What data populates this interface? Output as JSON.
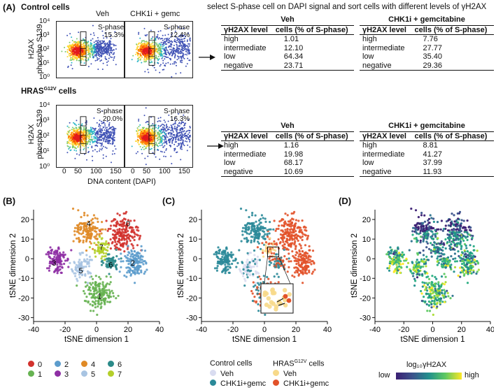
{
  "panel_a": {
    "label": "(A)",
    "title": "select S-phase cell on DAPI signal and sort cells with different levels of γH2AX",
    "flow_ylabel_1": "H2AX",
    "flow_ylabel_2": "phospho S139",
    "flow_xlabel": "DNA content (DAPI)",
    "yticks": [
      "10⁴",
      "10³",
      "10²",
      "10¹",
      "10⁰"
    ],
    "xticks": [
      "0",
      "50",
      "100",
      "150"
    ],
    "rows": [
      {
        "group": "Control cells",
        "group_sup": "",
        "conditions": [
          "Veh",
          "CHK1i + gemc"
        ],
        "sphase_label": "S-phase",
        "sphase_pct": [
          "15.3%",
          "12.4%"
        ],
        "tables": [
          {
            "header": "Veh",
            "col1": "γH2AX level",
            "col2": "cells (% of S-phase)",
            "rows": [
              [
                "high",
                "1.01"
              ],
              [
                "intermediate",
                "12.10"
              ],
              [
                "low",
                "64.34"
              ],
              [
                "negative",
                "23.71"
              ]
            ]
          },
          {
            "header": "CHK1i + gemcitabine",
            "col1": "γH2AX level",
            "col2": "cells (% of S-phase)",
            "rows": [
              [
                "high",
                "7.76"
              ],
              [
                "intermediate",
                "27.77"
              ],
              [
                "low",
                "35.40"
              ],
              [
                "negative",
                "29.36"
              ]
            ]
          }
        ]
      },
      {
        "group": "HRAS",
        "group_sup": "G12V",
        "group_tail": " cells",
        "conditions": [
          "",
          ""
        ],
        "sphase_label": "S-phase",
        "sphase_pct": [
          "20.0%",
          "16.3%"
        ],
        "tables": [
          {
            "header": "Veh",
            "col1": "γH2AX level",
            "col2": "cells (% of S-phase)",
            "rows": [
              [
                "high",
                "1.16"
              ],
              [
                "intermediate",
                "19.98"
              ],
              [
                "low",
                "68.17"
              ],
              [
                "negative",
                "10.69"
              ]
            ]
          },
          {
            "header": "CHK1i + gemcitabine",
            "col1": "γH2AX level",
            "col2": "cells (% of S-phase)",
            "rows": [
              [
                "high",
                "8.81"
              ],
              [
                "intermediate",
                "41.27"
              ],
              [
                "low",
                "37.99"
              ],
              [
                "negative",
                "11.93"
              ]
            ]
          }
        ]
      }
    ]
  },
  "tsne": {
    "xlabel": "tSNE dimension 1",
    "ylabel": "tSNE dimension 2",
    "xticks": [
      "-40",
      "-20",
      "0",
      "20",
      "40"
    ],
    "yticks": [
      "20",
      "10",
      "0",
      "-10",
      "-20",
      "-30"
    ]
  },
  "panel_b": {
    "label": "(B)",
    "cluster_labels": [
      "0",
      "1",
      "2",
      "3",
      "4",
      "5",
      "6",
      "7"
    ],
    "legend": [
      {
        "label": "0",
        "color": "#d2322d"
      },
      {
        "label": "1",
        "color": "#67b352"
      },
      {
        "label": "2",
        "color": "#5c9ccc"
      },
      {
        "label": "3",
        "color": "#8e2fa4"
      },
      {
        "label": "4",
        "color": "#e08a26"
      },
      {
        "label": "5",
        "color": "#a8c4e2"
      },
      {
        "label": "6",
        "color": "#2b8a89"
      },
      {
        "label": "7",
        "color": "#b4cf2a"
      }
    ]
  },
  "panel_c": {
    "label": "(C)",
    "legend_control": "Control cells",
    "legend_hras": "HRAS",
    "legend_hras_sup": "G12V",
    "legend_hras_tail": " cells",
    "items": [
      {
        "label": "Veh",
        "color": "#d9dcf0"
      },
      {
        "label": "CHK1i+gemc",
        "color": "#2b8a99"
      },
      {
        "label": "Veh",
        "color": "#f7d98a"
      },
      {
        "label": "CHK1i+gemc",
        "color": "#e2522a"
      }
    ]
  },
  "panel_d": {
    "label": "(D)",
    "colorbar_title": "log₁₀γH2AX",
    "low_label": "low",
    "high_label": "high"
  },
  "colors": {
    "accent_purple": "#3b1f73",
    "accent_yellow": "#fde725"
  }
}
